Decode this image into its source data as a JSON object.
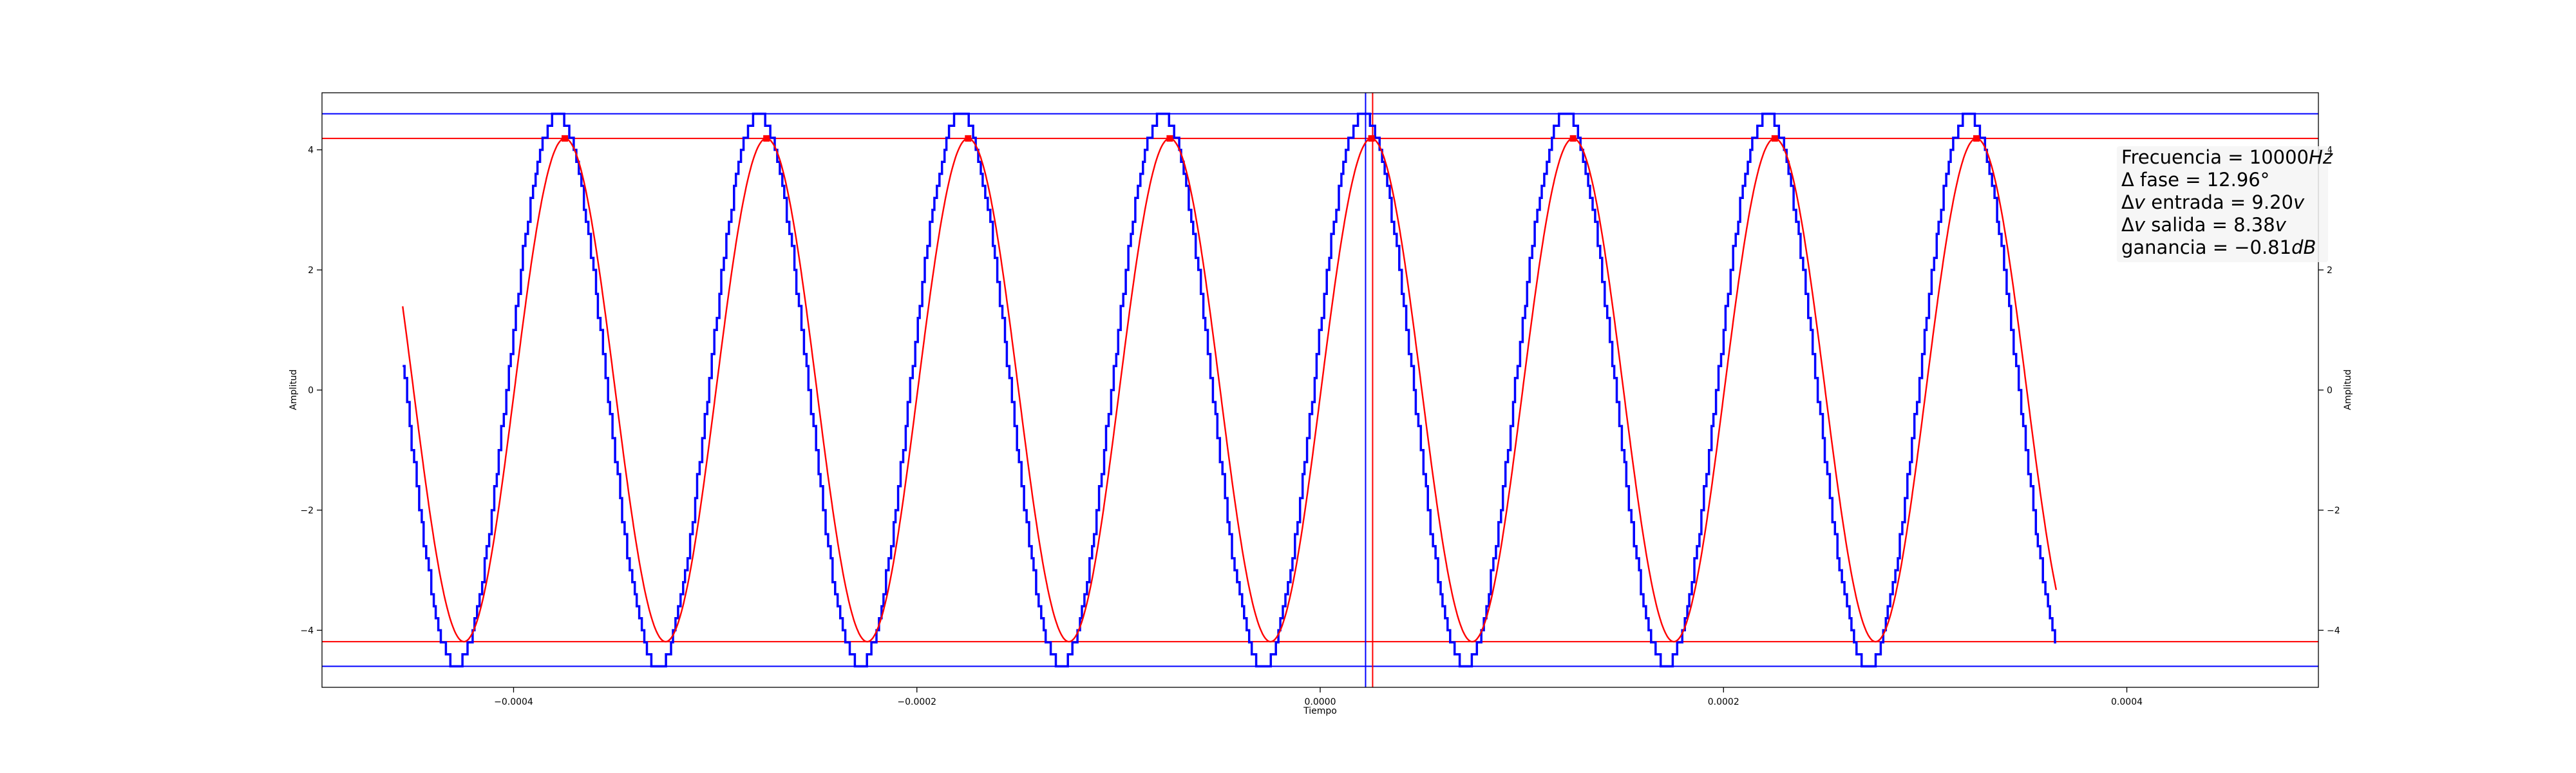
{
  "chart_data": {
    "type": "line",
    "xlabel": "Tiempo",
    "ylabel": "Amplitud",
    "xlim": [
      -0.000495,
      0.000495
    ],
    "ylim": [
      -4.95,
      4.95
    ],
    "x_ticks": [
      -0.0004,
      -0.0002,
      0.0,
      0.0002,
      0.0004
    ],
    "x_tick_labels": [
      "−0.0004",
      "−0.0002",
      "0.0000",
      "0.0002",
      "0.0004"
    ],
    "y_ticks": [
      4,
      2,
      0,
      -2,
      -4
    ],
    "y_tick_labels": [
      "4",
      "2",
      "0",
      "−2",
      "−4"
    ],
    "signal": {
      "frequency_hz": 10000,
      "x_start": -0.000455,
      "x_end": 0.000365,
      "x_first_peak_blue": -0.0003782
    },
    "series": [
      {
        "color": "#0000ff",
        "amplitude": 4.6,
        "phase_shift_s": 0.0,
        "step": 0.2,
        "step_time_s": 1.2e-06
      },
      {
        "color": "#ff0000",
        "amplitude": 4.19,
        "phase_shift_s": 3.6e-06,
        "step": 0.0,
        "step_time_s": 0.0
      }
    ],
    "reference_lines": {
      "blue_y": [
        4.6,
        -4.6
      ],
      "red_y": [
        4.19,
        -4.19
      ],
      "blue_x": [
        2.25e-05
      ],
      "red_x": [
        2.6e-05
      ]
    },
    "annotations": {
      "frecuencia": "Frecuencia = 10000",
      "frecuencia_unit": "Hz",
      "fase": "Δ fase  = 12.96°",
      "entrada_prefix": "Δ",
      "entrada_var": "v",
      "entrada_mid": " entrada  = 9.20",
      "entrada_unit": "v",
      "salida_prefix": "Δ",
      "salida_var": "v",
      "salida_mid": " salida  = 8.38",
      "salida_unit": "v",
      "ganancia": "ganancia  = −0.81",
      "ganancia_unit": "dB"
    }
  }
}
